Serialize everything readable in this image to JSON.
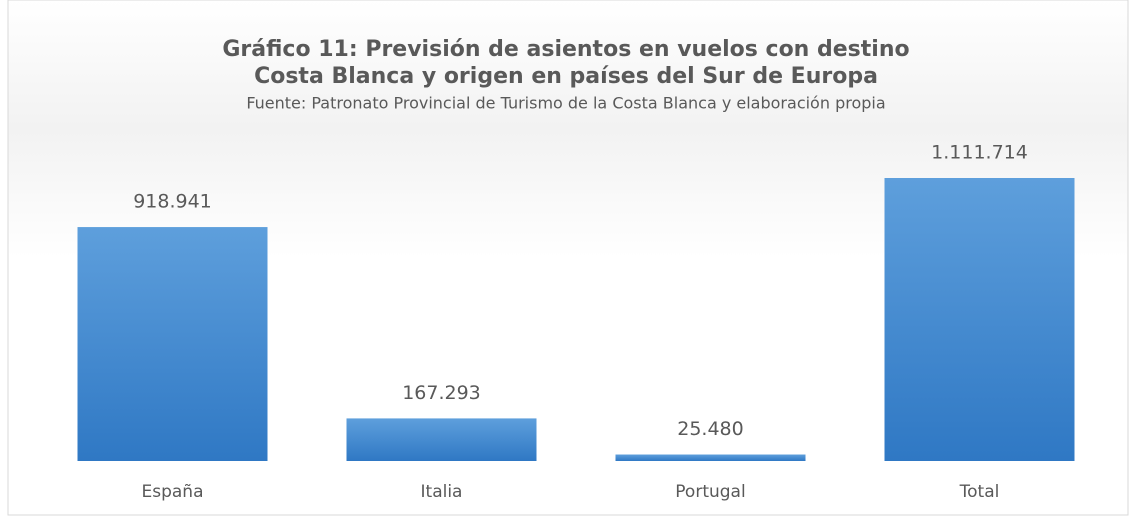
{
  "chart_data": {
    "type": "bar",
    "title": [
      "Gráfico 11: Previsión de asientos en vuelos con destino",
      "Costa Blanca y origen en países del Sur de Europa"
    ],
    "subtitle": "Fuente: Patronato Provincial de Turismo de la Costa Blanca y elaboración propia",
    "categories": [
      "España",
      "Italia",
      "Portugal",
      "Total"
    ],
    "values": [
      918941,
      167293,
      25480,
      1111714
    ],
    "value_labels": [
      "918.941",
      "167.293",
      "25.480",
      "1.111.714"
    ],
    "color": "#4a8fd4"
  }
}
